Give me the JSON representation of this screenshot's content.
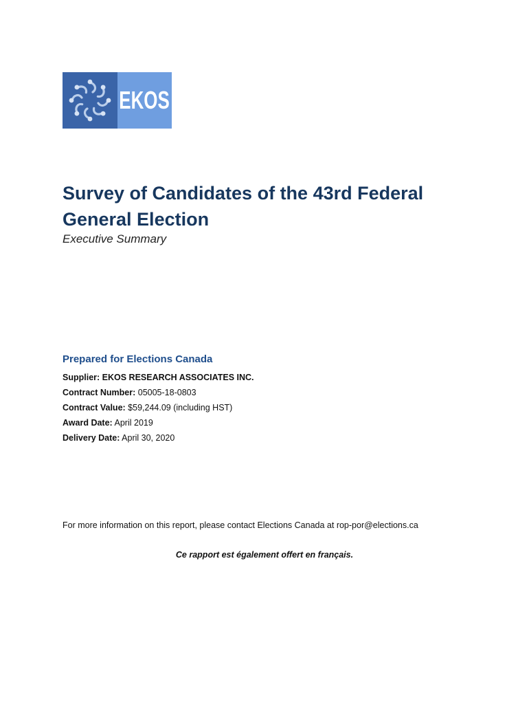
{
  "logo": {
    "text": "EKOS"
  },
  "document": {
    "title_line1": "Survey of Candidates of the 43rd Federal",
    "title_line2": "General Election",
    "subtitle": "Executive Summary",
    "prepared_for": "Prepared for Elections Canada",
    "details": [
      {
        "label": "Supplier: EKOS RESEARCH ASSOCIATES INC.",
        "value": ""
      },
      {
        "label": "Contract Number:",
        "value": "05005-18-0803"
      },
      {
        "label": "Contract Value:",
        "value": "$59,244.09 (including HST)"
      },
      {
        "label": "Award Date:",
        "value": "April 2019"
      },
      {
        "label": "Delivery Date:",
        "value": "April 30, 2020"
      }
    ],
    "contact": "For more information on this report, please contact Elections Canada at rop-por@elections.ca",
    "french_note": "Ce rapport est également offert en français."
  },
  "colors": {
    "logo_dark": "#3a64a8",
    "logo_light": "#6f9ee0",
    "title": "#17375e",
    "prepared": "#1f4e8c"
  }
}
